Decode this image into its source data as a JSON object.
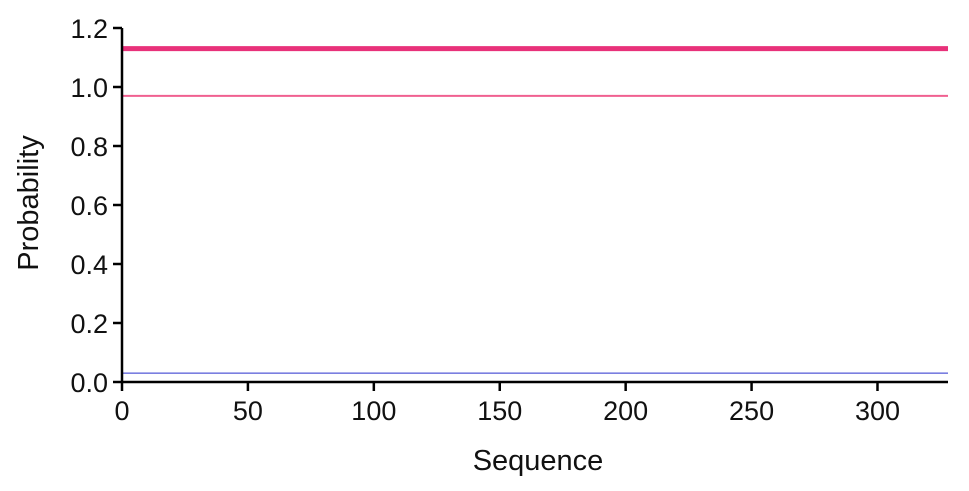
{
  "chart_data": {
    "type": "line",
    "xlabel": "Sequence",
    "ylabel": "Probability",
    "xlim": [
      0,
      328
    ],
    "ylim": [
      0,
      1.2
    ],
    "x_ticks": [
      "0",
      "50",
      "100",
      "150",
      "200",
      "250",
      "300"
    ],
    "y_ticks": [
      "0.0",
      "0.2",
      "0.4",
      "0.6",
      "0.8",
      "1.0",
      "1.2"
    ],
    "grid": false,
    "series": [
      {
        "color": "#e8317a",
        "x": [
          0,
          328
        ],
        "values": [
          1.13,
          1.13
        ]
      },
      {
        "color": "#f06090",
        "x": [
          0,
          328
        ],
        "values": [
          0.97,
          0.97
        ]
      },
      {
        "color": "#7b7fe0",
        "x": [
          0,
          328
        ],
        "values": [
          0.03,
          0.03
        ]
      }
    ]
  }
}
